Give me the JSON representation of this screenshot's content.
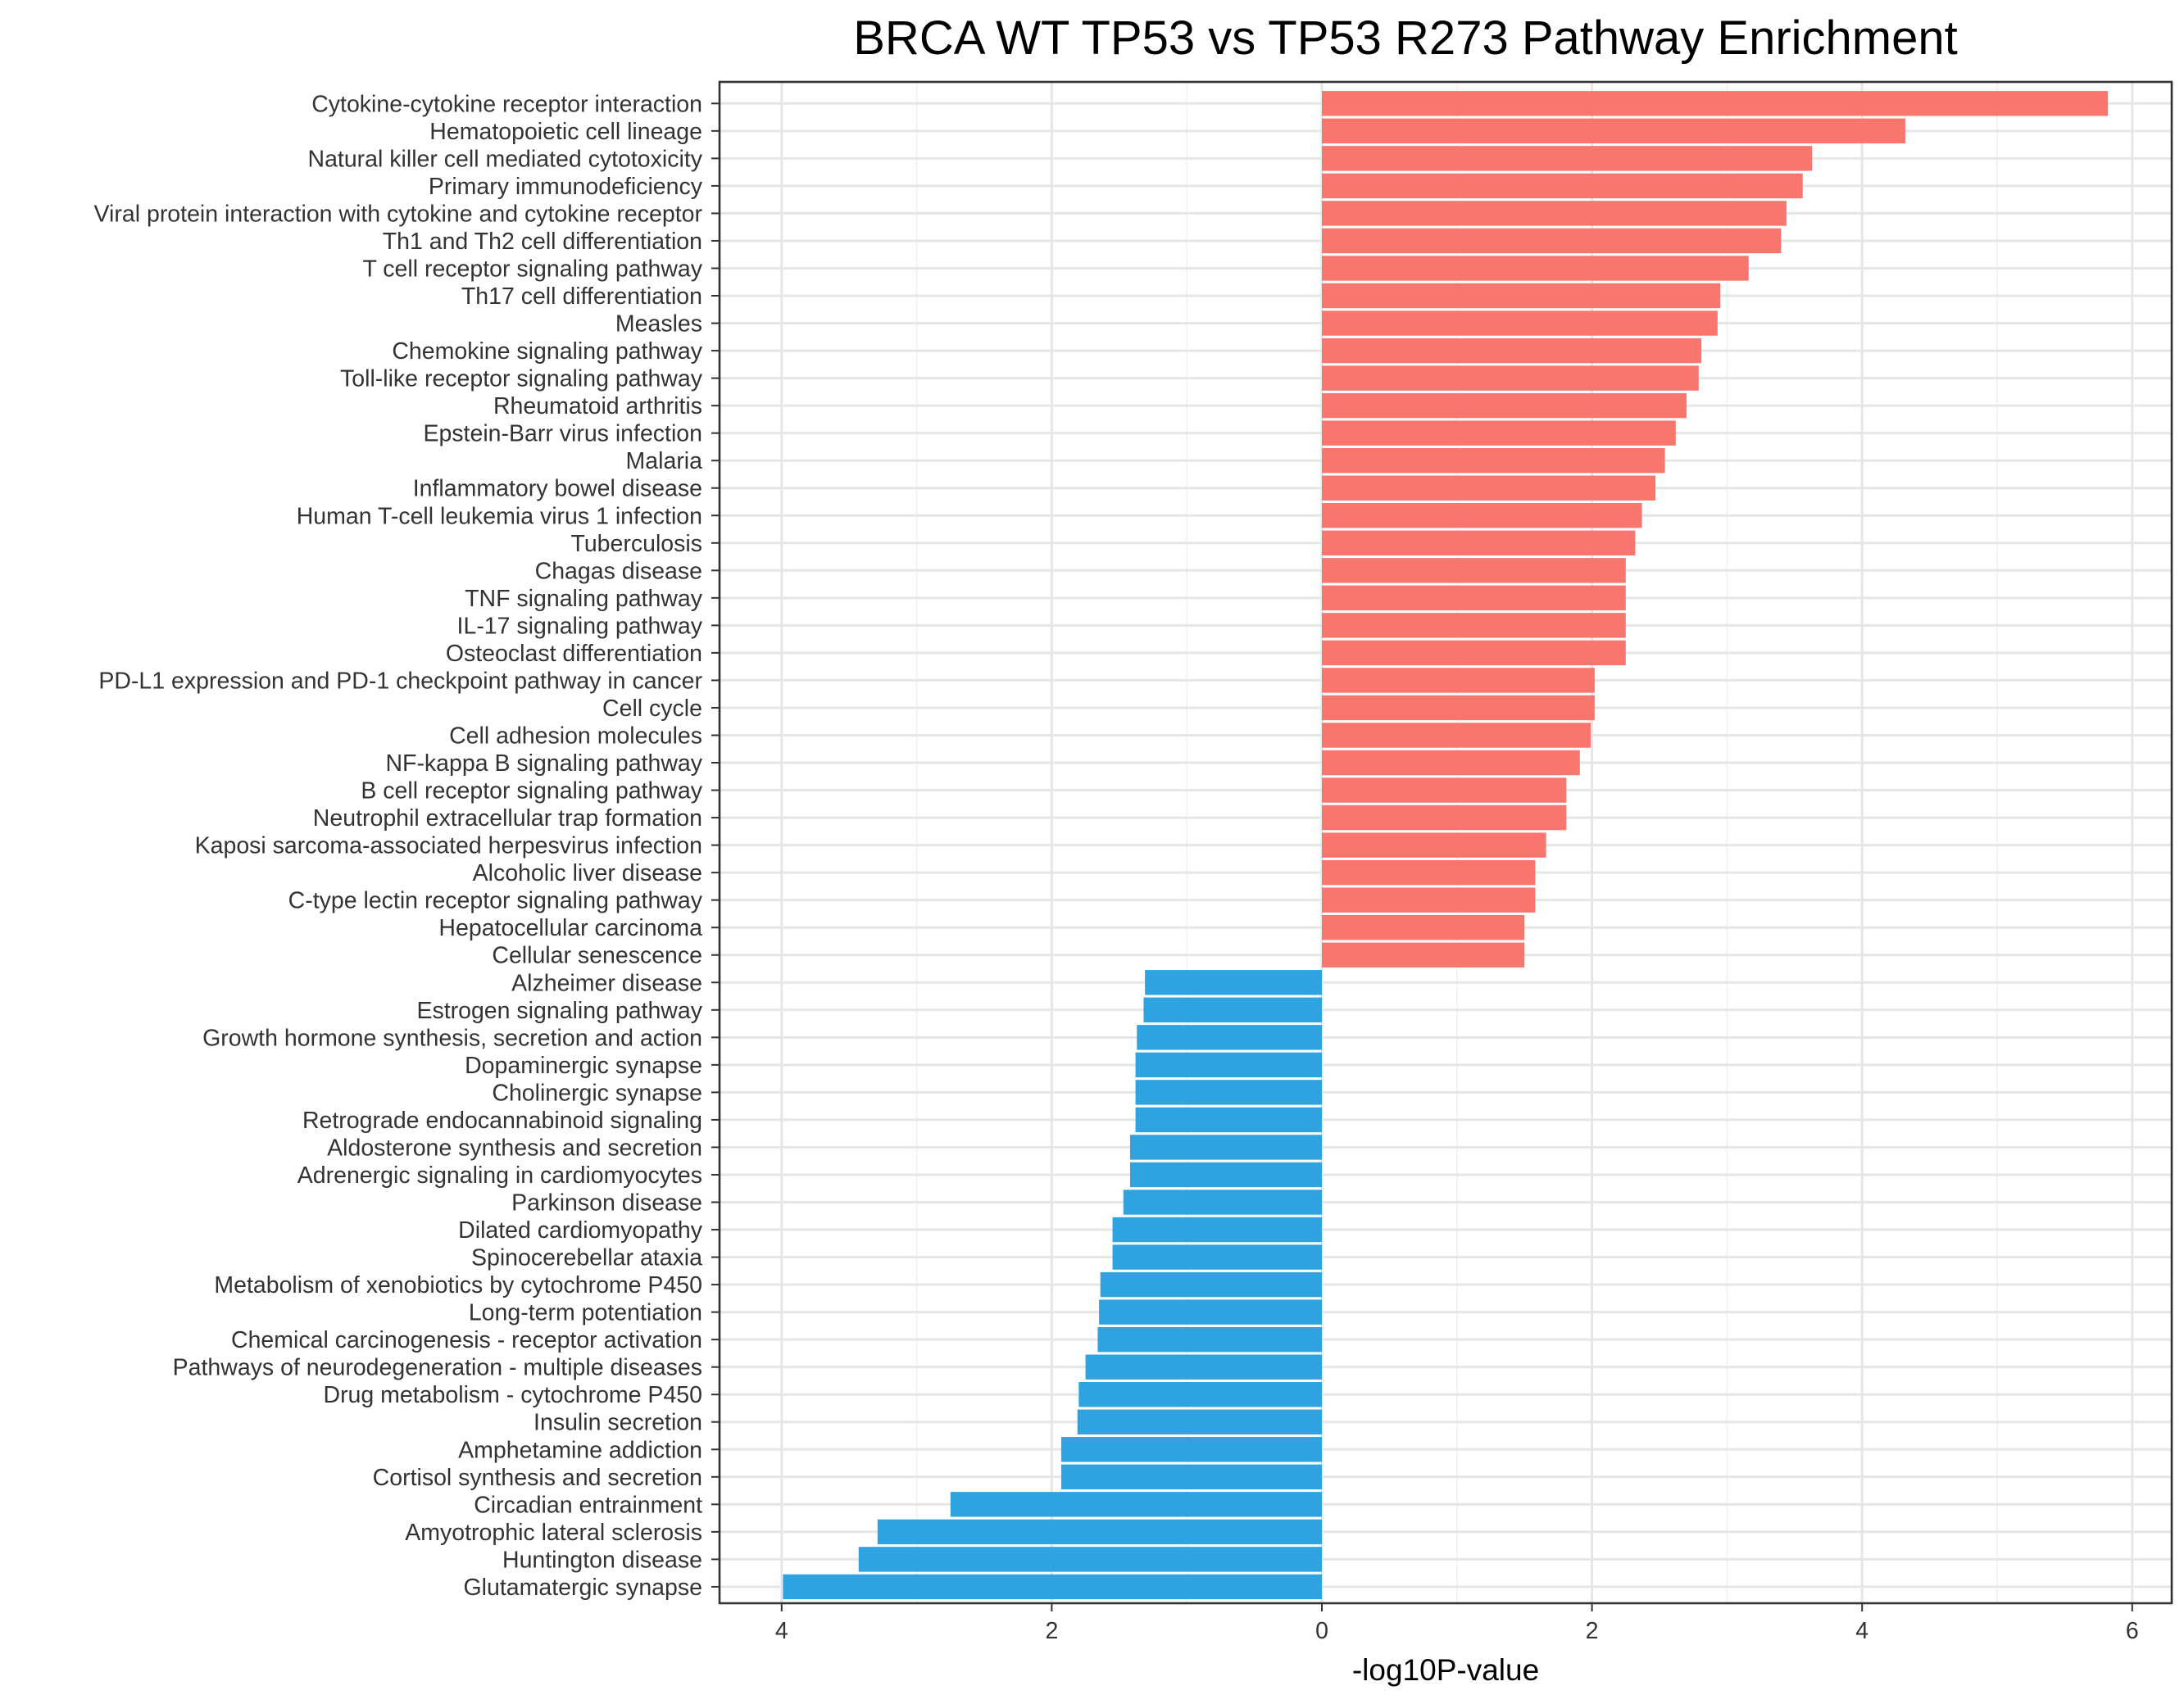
{
  "colors": {
    "positive": "#F8766D",
    "negative": "#2FA3E0"
  },
  "chart_data": {
    "type": "bar",
    "orientation": "horizontal",
    "title": "BRCA WT TP53 vs TP53 R273 Pathway Enrichment",
    "xlabel": "-log10P-value",
    "ylabel": "",
    "xlim": [
      4.25,
      6.25
    ],
    "x_axis_reversed_negative_side": true,
    "xticks": [
      "4",
      "2",
      "0",
      "2",
      "4",
      "6"
    ],
    "grid": true,
    "legend": "none",
    "categories": [
      "Cytokine-cytokine receptor interaction",
      "Hematopoietic cell lineage",
      "Natural killer cell mediated cytotoxicity",
      "Primary immunodeficiency",
      "Viral protein interaction with cytokine and cytokine receptor",
      "Th1 and Th2 cell differentiation",
      "T cell receptor signaling pathway",
      "Th17 cell differentiation",
      "Measles",
      "Chemokine signaling pathway",
      "Toll-like receptor signaling pathway",
      "Rheumatoid arthritis",
      "Epstein-Barr virus infection",
      "Malaria",
      "Inflammatory bowel disease",
      "Human T-cell leukemia virus 1 infection",
      "Tuberculosis",
      "Chagas disease",
      "TNF signaling pathway",
      "IL-17 signaling pathway",
      "Osteoclast differentiation",
      "PD-L1 expression and PD-1 checkpoint pathway in cancer",
      "Cell cycle",
      "Cell adhesion molecules",
      "NF-kappa B signaling pathway",
      "B cell receptor signaling pathway",
      "Neutrophil extracellular trap formation",
      "Kaposi sarcoma-associated herpesvirus infection",
      "Alcoholic liver disease",
      "C-type lectin receptor signaling pathway",
      "Hepatocellular carcinoma",
      "Cellular senescence",
      "Alzheimer disease",
      "Estrogen signaling pathway",
      "Growth hormone synthesis, secretion and action",
      "Dopaminergic synapse",
      "Cholinergic synapse",
      "Retrograde endocannabinoid signaling",
      "Aldosterone synthesis and secretion",
      "Adrenergic signaling in cardiomyocytes",
      "Parkinson disease",
      "Dilated cardiomyopathy",
      "Spinocerebellar ataxia",
      "Metabolism of xenobiotics by cytochrome P450",
      "Long-term potentiation",
      "Chemical carcinogenesis - receptor activation",
      "Pathways of neurodegeneration - multiple diseases",
      "Drug metabolism - cytochrome P450",
      "Insulin secretion",
      "Amphetamine addiction",
      "Cortisol synthesis and secretion",
      "Circadian entrainment",
      "Amyotrophic lateral sclerosis",
      "Huntington disease",
      "Glutamatergic synapse"
    ],
    "values": [
      5.82,
      4.32,
      3.63,
      3.56,
      3.44,
      3.4,
      3.16,
      2.95,
      2.93,
      2.81,
      2.79,
      2.7,
      2.62,
      2.54,
      2.47,
      2.37,
      2.32,
      2.25,
      2.25,
      2.25,
      2.25,
      2.02,
      2.02,
      1.99,
      1.91,
      1.81,
      1.81,
      1.66,
      1.58,
      1.58,
      1.5,
      1.5,
      -1.31,
      -1.32,
      -1.37,
      -1.38,
      -1.38,
      -1.38,
      -1.42,
      -1.42,
      -1.47,
      -1.55,
      -1.55,
      -1.64,
      -1.65,
      -1.66,
      -1.75,
      -1.8,
      -1.81,
      -1.93,
      -1.93,
      -2.75,
      -3.29,
      -3.43,
      -3.99
    ]
  }
}
